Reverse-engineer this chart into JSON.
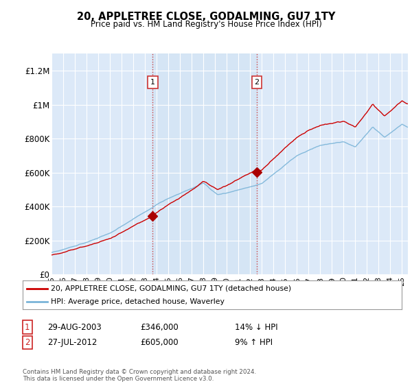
{
  "title": "20, APPLETREE CLOSE, GODALMING, GU7 1TY",
  "subtitle": "Price paid vs. HM Land Registry's House Price Index (HPI)",
  "ylabel_ticks": [
    "£0",
    "£200K",
    "£400K",
    "£600K",
    "£800K",
    "£1M",
    "£1.2M"
  ],
  "ytick_values": [
    0,
    200000,
    400000,
    600000,
    800000,
    1000000,
    1200000
  ],
  "ylim": [
    0,
    1300000
  ],
  "xlim_start": 1995.0,
  "xlim_end": 2025.5,
  "background_color": "#dce9f8",
  "fig_background_color": "#ffffff",
  "grid_color": "#ffffff",
  "sale1_date": 2003.66,
  "sale1_price": 346000,
  "sale1_label": "1",
  "sale2_date": 2012.57,
  "sale2_price": 605000,
  "sale2_label": "2",
  "hpi_line_color": "#7ab4d8",
  "price_line_color": "#cc0000",
  "sale_marker_color": "#aa0000",
  "dashed_line_color": "#cc3333",
  "shade_color": "#d0e4f5",
  "legend_line1": "20, APPLETREE CLOSE, GODALMING, GU7 1TY (detached house)",
  "legend_line2": "HPI: Average price, detached house, Waverley",
  "table_row1_num": "1",
  "table_row1_date": "29-AUG-2003",
  "table_row1_price": "£346,000",
  "table_row1_hpi": "14% ↓ HPI",
  "table_row2_num": "2",
  "table_row2_date": "27-JUL-2012",
  "table_row2_price": "£605,000",
  "table_row2_hpi": "9% ↑ HPI",
  "footer": "Contains HM Land Registry data © Crown copyright and database right 2024.\nThis data is licensed under the Open Government Licence v3.0.",
  "xtick_years": [
    1995,
    1996,
    1997,
    1998,
    1999,
    2000,
    2001,
    2002,
    2003,
    2004,
    2005,
    2006,
    2007,
    2008,
    2009,
    2010,
    2011,
    2012,
    2013,
    2014,
    2015,
    2016,
    2017,
    2018,
    2019,
    2020,
    2021,
    2022,
    2023,
    2024,
    2025
  ],
  "xtick_labels": [
    "95",
    "96",
    "97",
    "98",
    "99",
    "00",
    "01",
    "02",
    "03",
    "04",
    "05",
    "06",
    "07",
    "08",
    "09",
    "10",
    "11",
    "12",
    "13",
    "14",
    "15",
    "16",
    "17",
    "18",
    "19",
    "20",
    "21",
    "22",
    "23",
    "24",
    "25"
  ]
}
